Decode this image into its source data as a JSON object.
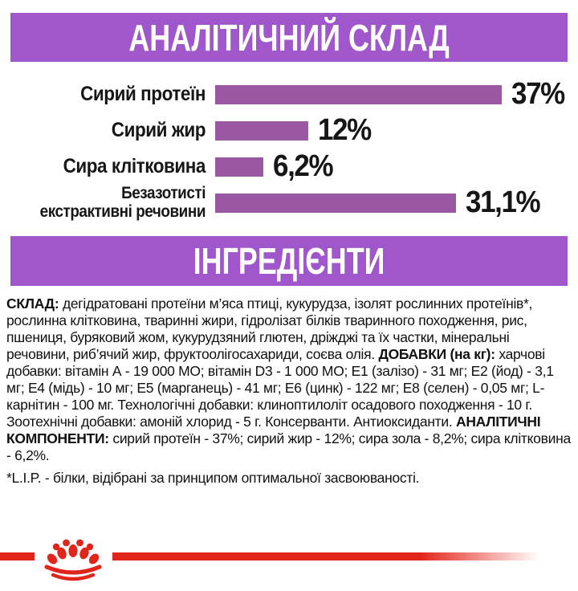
{
  "headers": {
    "analytical": "АНАЛІТИЧНИЙ СКЛАД",
    "ingredients": "ІНГРЕДІЄНТИ"
  },
  "chart_data": {
    "type": "bar",
    "orientation": "horizontal",
    "title": "АНАЛІТИЧНИЙ СКЛАД",
    "categories": [
      "Сирий протеїн",
      "Сирий жир",
      "Сира клітковина",
      "Безазотисті екстрактивні речовини"
    ],
    "values": [
      37,
      12,
      6.2,
      31.1
    ],
    "value_labels": [
      "37%",
      "12%",
      "6,2%",
      "31,1%"
    ],
    "xlim": [
      0,
      38.5
    ],
    "grid": false,
    "legend": "none",
    "rows": [
      {
        "label_lines": [
          "Сирий протеїн"
        ],
        "value": 37,
        "display": "37%"
      },
      {
        "label_lines": [
          "Сирий жир"
        ],
        "value": 12,
        "display": "12%"
      },
      {
        "label_lines": [
          "Сира клітковина"
        ],
        "value": 6.2,
        "display": "6,2%"
      },
      {
        "label_lines": [
          "Безазотисті",
          "екстрактивні речовини"
        ],
        "value": 31.1,
        "display": "31,1%"
      }
    ]
  },
  "ingredients": {
    "segments": [
      {
        "bold": true,
        "text": "СКЛАД: "
      },
      {
        "bold": false,
        "text": "дегідратовані протеїни м’яса птиці, кукурудза, ізолят рослинних протеїнів*, рослинна клітковина, тваринні жири, гідролізат білків тваринного походження, рис, пшениця, буряковий жом, кукурудзяний глютен, дріжджі та їх частки, мінеральні речовини, риб’ячий жир, фруктоолігосахариди, соєва олія. "
      },
      {
        "bold": true,
        "text": "ДОБАВКИ (на кг): "
      },
      {
        "bold": false,
        "text": "харчові добавки: вітамін А - 19 000 МО; вітамін D3 - 1 000 МО; Е1 (залізо) - 31 мг; Е2 (йод) - 3,1 мг; Е4 (мідь) - 10 мг; Е5 (марганець) - 41 мг; Е6 (цинк) - 122 мг; Е8 (селен) - 0,05 мг; L-карнітин - 100 мг. Технологічні добавки: клиноптилоліт осадового походження - 10 г. Зоотехнічні добавки: амоній хлорид - 5 г. Консерванти. Антиоксиданти. "
      },
      {
        "bold": true,
        "text": "АНАЛІТИЧНІ КОМПОНЕНТИ: "
      },
      {
        "bold": false,
        "text": "сирий протеїн - 37%; сирий жир - 12%; сира зола - 8,2%; сира клітковина - 6,2%."
      }
    ]
  },
  "footnote": "*L.I.P. - білки, відібрані за принципом оптимальної засвоюваності.",
  "brand": {
    "logo": "royal-canin-crown"
  },
  "colors": {
    "header_bg": "#9f57cb",
    "bar": "#9a58a3",
    "brand_red": "#e2251b",
    "ink": "#161616"
  }
}
